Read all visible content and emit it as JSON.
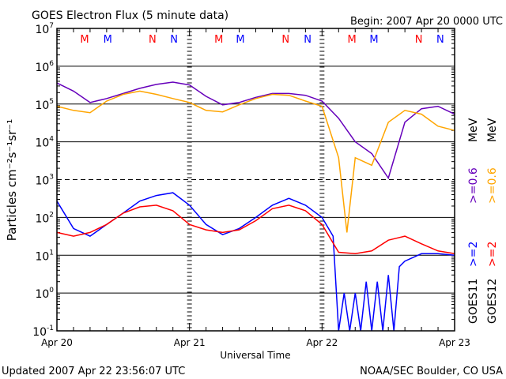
{
  "chart_data": {
    "type": "line",
    "title": "GOES Electron Flux (5 minute data)",
    "begin_label": "Begin: 2007 Apr 20 0000 UTC",
    "xlabel": "Universal Time",
    "ylabel": "Particles cm⁻²s⁻¹sr⁻¹",
    "x_unit": "hours since 2007 Apr 20 0000 UTC",
    "xlim": [
      0,
      72
    ],
    "x_ticks": [
      {
        "h": 0,
        "label": "Apr 20"
      },
      {
        "h": 24,
        "label": "Apr 21"
      },
      {
        "h": 48,
        "label": "Apr 22"
      },
      {
        "h": 72,
        "label": "Apr 23"
      }
    ],
    "yscale": "log",
    "ylim": [
      0.1,
      10000000
    ],
    "y_ticks": [
      {
        "exp": 7,
        "label": "10",
        "sup": "7"
      },
      {
        "exp": 6,
        "label": "10",
        "sup": "6"
      },
      {
        "exp": 5,
        "label": "10",
        "sup": "5"
      },
      {
        "exp": 4,
        "label": "10",
        "sup": "4"
      },
      {
        "exp": 3,
        "label": "10",
        "sup": "3"
      },
      {
        "exp": 2,
        "label": "10",
        "sup": "2"
      },
      {
        "exp": 1,
        "label": "10",
        "sup": "1"
      },
      {
        "exp": 0,
        "label": "10",
        "sup": "0"
      },
      {
        "exp": -1,
        "label": "10",
        "sup": "-1"
      }
    ],
    "dashed_level_exp": 3,
    "markers": [
      {
        "h": 5.0,
        "label": "M",
        "color": "#ff0000"
      },
      {
        "h": 9.2,
        "label": "M",
        "color": "#0000ff"
      },
      {
        "h": 17.3,
        "label": "N",
        "color": "#ff0000"
      },
      {
        "h": 21.2,
        "label": "N",
        "color": "#0000ff"
      },
      {
        "h": 29.3,
        "label": "M",
        "color": "#ff0000"
      },
      {
        "h": 33.2,
        "label": "M",
        "color": "#0000ff"
      },
      {
        "h": 41.4,
        "label": "N",
        "color": "#ff0000"
      },
      {
        "h": 45.4,
        "label": "N",
        "color": "#0000ff"
      },
      {
        "h": 53.4,
        "label": "M",
        "color": "#ff0000"
      },
      {
        "h": 57.4,
        "label": "M",
        "color": "#0000ff"
      },
      {
        "h": 65.5,
        "label": "N",
        "color": "#ff0000"
      },
      {
        "h": 69.4,
        "label": "N",
        "color": "#0000ff"
      }
    ],
    "series": [
      {
        "name": "GOES11 >=0.6 MeV",
        "color": "#6600bb",
        "x": [
          0,
          3,
          6,
          9,
          12,
          15,
          18,
          21,
          24,
          27,
          30,
          33,
          36,
          39,
          42,
          45,
          48,
          51,
          54,
          57,
          60,
          63,
          66,
          69,
          72
        ],
        "y": [
          360000,
          220000,
          110000,
          140000,
          190000,
          260000,
          330000,
          380000,
          320000,
          160000,
          95000,
          110000,
          150000,
          190000,
          190000,
          170000,
          120000,
          42000,
          10000,
          4900,
          1100,
          33000,
          75000,
          87000,
          54000
        ]
      },
      {
        "name": "GOES12 >=0.6 MeV",
        "color": "#ffa500",
        "x": [
          0,
          3,
          6,
          9,
          12,
          15,
          18,
          21,
          24,
          27,
          30,
          33,
          36,
          39,
          42,
          45,
          48,
          51,
          52.5,
          54,
          57,
          60,
          63,
          66,
          69,
          72
        ],
        "y": [
          87000,
          68000,
          59000,
          120000,
          180000,
          220000,
          180000,
          140000,
          110000,
          68000,
          62000,
          95000,
          140000,
          180000,
          170000,
          120000,
          87000,
          3800,
          40,
          3800,
          2400,
          33000,
          68000,
          54000,
          26000,
          20000
        ]
      },
      {
        "name": "GOES11 >=2 MeV",
        "color": "#0000ff",
        "x": [
          0,
          3,
          6,
          9,
          12,
          15,
          18,
          21,
          24,
          27,
          30,
          33,
          36,
          39,
          42,
          45,
          48,
          50,
          51,
          52,
          53,
          54,
          55,
          56,
          57,
          58,
          59,
          60,
          61,
          62,
          63,
          66,
          69,
          72
        ],
        "y": [
          270,
          51,
          32,
          65,
          130,
          270,
          380,
          450,
          210,
          65,
          35,
          51,
          100,
          210,
          320,
          210,
          100,
          32,
          0.1,
          1,
          0.1,
          1,
          0.1,
          2,
          0.1,
          2,
          0.1,
          3,
          0.1,
          5,
          7,
          11,
          11,
          10
        ]
      },
      {
        "name": "GOES12 >=2 MeV",
        "color": "#ff0000",
        "x": [
          0,
          3,
          6,
          9,
          12,
          15,
          18,
          21,
          24,
          27,
          30,
          33,
          36,
          39,
          42,
          45,
          48,
          51,
          54,
          57,
          60,
          63,
          66,
          69,
          72
        ],
        "y": [
          40,
          32,
          40,
          65,
          130,
          190,
          210,
          150,
          65,
          47,
          40,
          47,
          82,
          170,
          210,
          150,
          65,
          12,
          11,
          13,
          25,
          32,
          20,
          13,
          11
        ]
      }
    ],
    "right_legend": [
      {
        "text": "GOES11",
        "color": "#000000",
        "group": 0
      },
      {
        "text": ">=2",
        "color": "#0000ff",
        "group": 0
      },
      {
        "text": ">=0.6",
        "color": "#6600bb",
        "group": 0
      },
      {
        "text": "MeV",
        "color": "#000000",
        "group": 0
      },
      {
        "text": "GOES12",
        "color": "#000000",
        "group": 1
      },
      {
        "text": ">=2",
        "color": "#ff0000",
        "group": 1
      },
      {
        "text": ">=0.6",
        "color": "#ffa500",
        "group": 1
      },
      {
        "text": "MeV",
        "color": "#000000",
        "group": 1
      }
    ]
  },
  "footer": {
    "updated": "Updated 2007 Apr 22 23:56:07 UTC",
    "source": "NOAA/SEC Boulder, CO USA"
  }
}
